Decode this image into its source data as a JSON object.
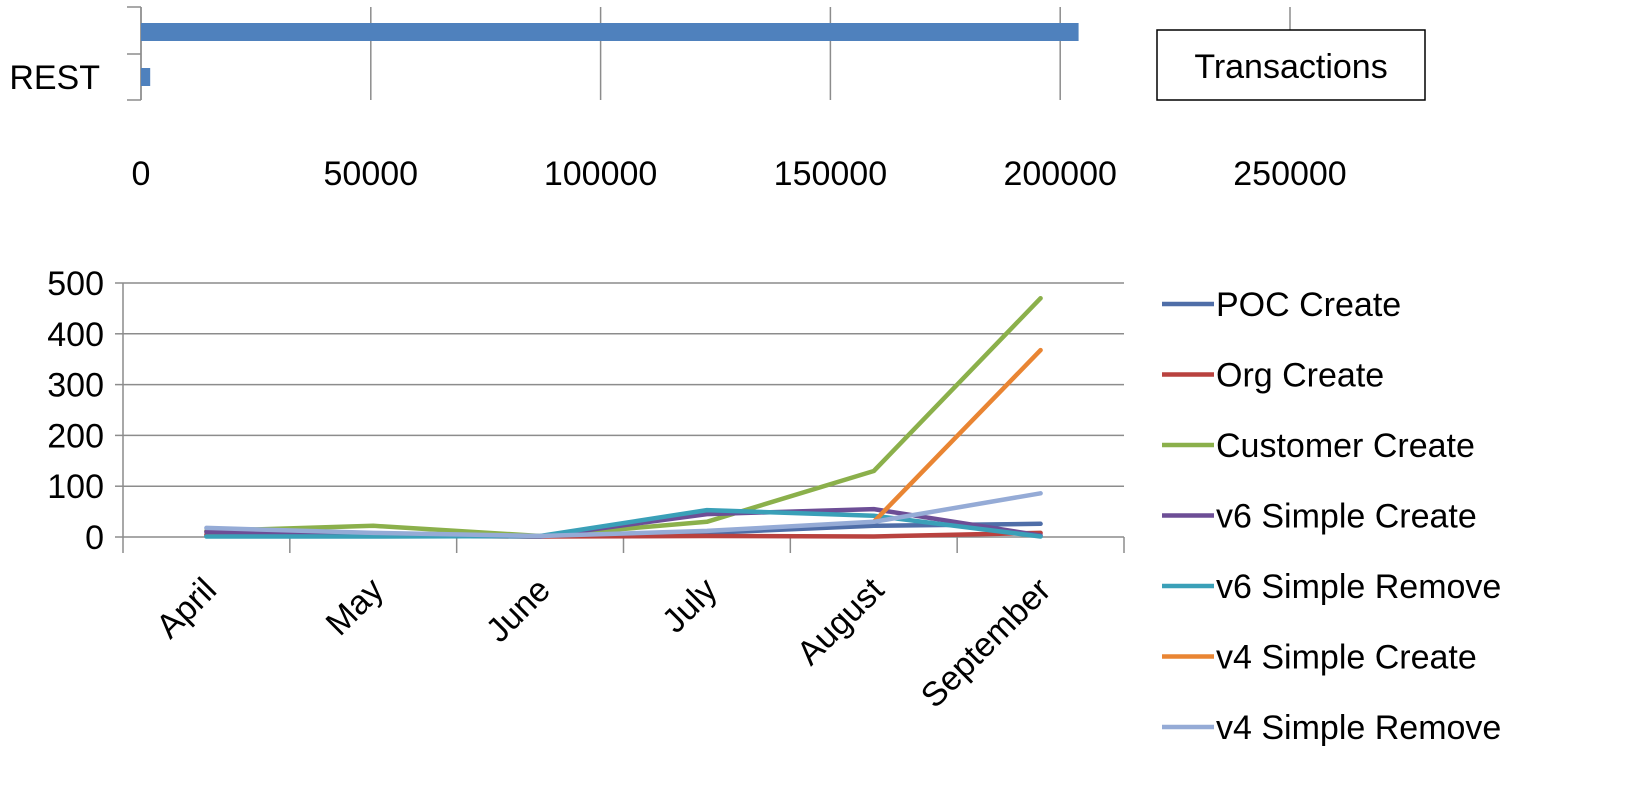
{
  "chart_data": [
    {
      "type": "bar",
      "orientation": "horizontal",
      "categories": [
        "REST",
        ""
      ],
      "series": [
        {
          "name": "Transactions",
          "values": [
            2000,
            204000
          ],
          "color": "#4F81BD"
        }
      ],
      "xlim": [
        0,
        250000
      ],
      "xticks": [
        "0",
        "50000",
        "100000",
        "150000",
        "200000",
        "250000"
      ],
      "grid": true,
      "legend": "right",
      "legend_label": "Transactions"
    },
    {
      "type": "line",
      "categories": [
        "April",
        "May",
        "June",
        "July",
        "August",
        "September"
      ],
      "ylim": [
        0,
        500
      ],
      "yticks": [
        "0",
        "100",
        "200",
        "300",
        "400",
        "500"
      ],
      "grid": true,
      "legend": "right",
      "series": [
        {
          "name": "POC Create",
          "color": "#4F6EA8",
          "values": [
            2,
            2,
            1,
            8,
            22,
            26
          ]
        },
        {
          "name": "Org Create",
          "color": "#B9423F",
          "values": [
            5,
            3,
            1,
            2,
            1,
            8
          ]
        },
        {
          "name": "Customer Create",
          "color": "#8BB04B",
          "values": [
            12,
            22,
            2,
            30,
            130,
            470
          ]
        },
        {
          "name": "v6 Simple Create",
          "color": "#6D4E96",
          "values": [
            10,
            5,
            1,
            45,
            55,
            3
          ]
        },
        {
          "name": "v6 Simple Remove",
          "color": "#3AA0B8",
          "values": [
            1,
            1,
            2,
            53,
            42,
            1
          ]
        },
        {
          "name": "v4 Simple Create",
          "color": "#E98533",
          "values": [
            null,
            null,
            null,
            null,
            30,
            368
          ]
        },
        {
          "name": "v4 Simple Remove",
          "color": "#95ABD6",
          "values": [
            18,
            8,
            2,
            12,
            30,
            86
          ]
        }
      ]
    }
  ]
}
